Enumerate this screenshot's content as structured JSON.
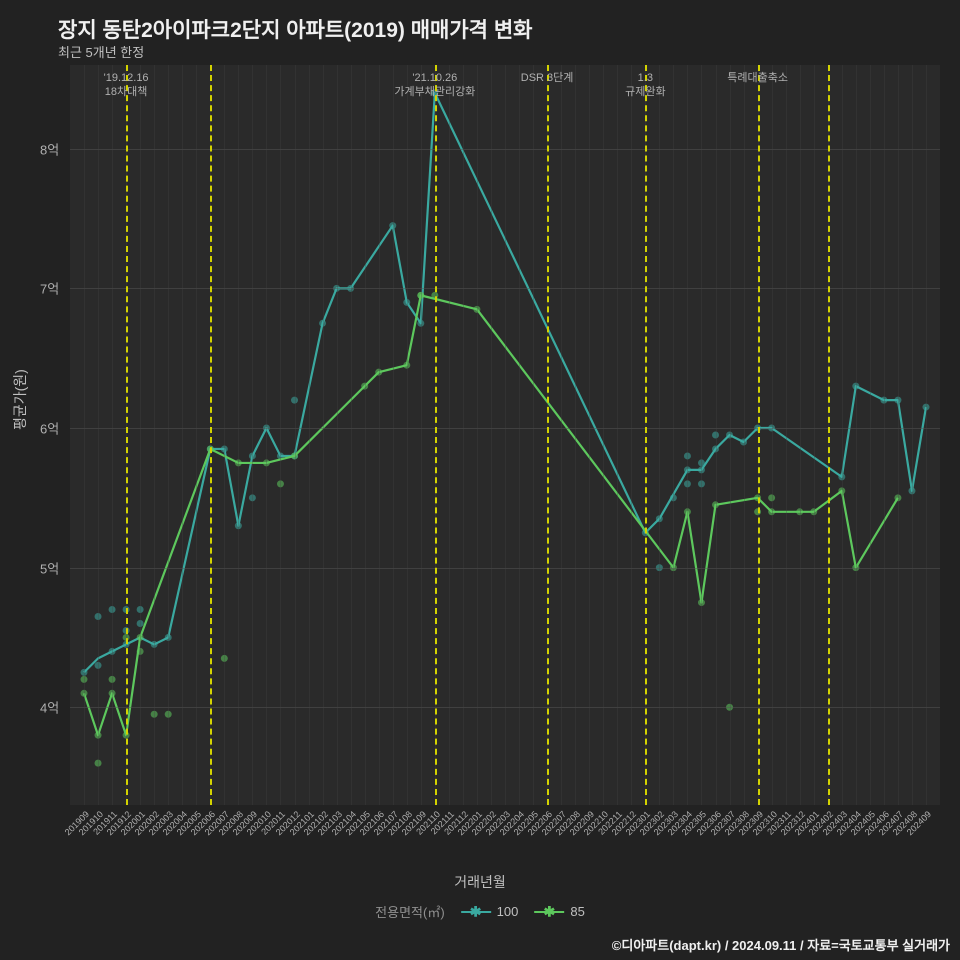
{
  "title": "장지 동탄2아이파크2단지 아파트(2019) 매매가격 변화",
  "subtitle": "최근 5개년 한정",
  "ylabel": "평균가(원)",
  "xlabel": "거래년월",
  "legend_title": "전용면적(㎡)",
  "footer": "©디아파트(dapt.kr) / 2024.09.11 / 자료=국토교통부 실거래가",
  "plot": {
    "bg": "#2a2a2a",
    "ylim": [
      3.3,
      8.6
    ],
    "yticks": [
      4,
      5,
      6,
      7,
      8
    ],
    "ytick_labels": [
      "4억",
      "5억",
      "6억",
      "7억",
      "8억"
    ],
    "x_categories": [
      "201909",
      "201910",
      "201911",
      "201912",
      "202001",
      "202002",
      "202003",
      "202004",
      "202005",
      "202006",
      "202007",
      "202008",
      "202009",
      "202010",
      "202011",
      "202012",
      "202101",
      "202102",
      "202103",
      "202104",
      "202105",
      "202106",
      "202107",
      "202108",
      "202109",
      "202110",
      "202111",
      "202112",
      "202201",
      "202202",
      "202203",
      "202204",
      "202205",
      "202206",
      "202207",
      "202208",
      "202209",
      "202210",
      "202211",
      "202212",
      "202301",
      "202302",
      "202303",
      "202304",
      "202305",
      "202306",
      "202307",
      "202308",
      "202309",
      "202310",
      "202311",
      "202312",
      "202401",
      "202402",
      "202403",
      "202404",
      "202405",
      "202406",
      "202407",
      "202408",
      "202409"
    ],
    "grid_color_h": "#555555",
    "grid_color_v": "#444444",
    "vline_color": "#d4d400",
    "vlines": [
      {
        "x": 3,
        "label": "'19.12.16\n18차대책"
      },
      {
        "x": 9,
        "label": ""
      },
      {
        "x": 25,
        "label": "'21.10.26\n가계부채관리강화"
      },
      {
        "x": 33,
        "label": "DSR 3단계"
      },
      {
        "x": 40,
        "label": "1.3\n규제완화"
      },
      {
        "x": 48,
        "label": "특례대출축소"
      },
      {
        "x": 53,
        "label": ""
      }
    ],
    "series": [
      {
        "name": "100",
        "color": "#3aa9a0",
        "marker": "x",
        "line": [
          [
            0,
            4.25
          ],
          [
            1,
            4.35
          ],
          [
            2,
            4.4
          ],
          [
            3,
            4.45
          ],
          [
            4,
            4.5
          ],
          [
            5,
            4.45
          ],
          [
            6,
            4.5
          ],
          [
            9,
            5.85
          ],
          [
            10,
            5.85
          ],
          [
            11,
            5.3
          ],
          [
            12,
            5.8
          ],
          [
            13,
            6.0
          ],
          [
            14,
            5.8
          ],
          [
            15,
            5.8
          ],
          [
            17,
            6.75
          ],
          [
            18,
            7.0
          ],
          [
            19,
            7.0
          ],
          [
            22,
            7.45
          ],
          [
            23,
            6.9
          ],
          [
            24,
            6.75
          ],
          [
            25,
            8.4
          ],
          [
            40,
            5.25
          ],
          [
            41,
            5.35
          ],
          [
            43,
            5.7
          ],
          [
            44,
            5.7
          ],
          [
            45,
            5.85
          ],
          [
            46,
            5.95
          ],
          [
            47,
            5.9
          ],
          [
            48,
            6.0
          ],
          [
            49,
            6.0
          ],
          [
            54,
            5.65
          ],
          [
            55,
            6.3
          ],
          [
            57,
            6.2
          ],
          [
            58,
            6.2
          ],
          [
            59,
            5.55
          ],
          [
            60,
            6.15
          ]
        ],
        "scatter": [
          [
            0,
            4.25
          ],
          [
            1,
            4.3
          ],
          [
            1,
            4.65
          ],
          [
            2,
            4.7
          ],
          [
            2,
            4.4
          ],
          [
            3,
            4.7
          ],
          [
            3,
            4.55
          ],
          [
            3,
            4.45
          ],
          [
            4,
            4.7
          ],
          [
            4,
            4.6
          ],
          [
            5,
            4.45
          ],
          [
            6,
            4.5
          ],
          [
            9,
            5.85
          ],
          [
            10,
            5.85
          ],
          [
            11,
            5.3
          ],
          [
            12,
            5.8
          ],
          [
            12,
            5.5
          ],
          [
            13,
            6.0
          ],
          [
            14,
            5.8
          ],
          [
            15,
            5.8
          ],
          [
            15,
            6.2
          ],
          [
            17,
            6.75
          ],
          [
            18,
            7.0
          ],
          [
            19,
            7.0
          ],
          [
            22,
            7.45
          ],
          [
            23,
            6.9
          ],
          [
            24,
            6.75
          ],
          [
            25,
            8.4
          ],
          [
            40,
            5.25
          ],
          [
            41,
            5.35
          ],
          [
            41,
            5.0
          ],
          [
            42,
            5.5
          ],
          [
            43,
            5.8
          ],
          [
            43,
            5.7
          ],
          [
            43,
            5.6
          ],
          [
            44,
            5.7
          ],
          [
            44,
            5.6
          ],
          [
            44,
            5.75
          ],
          [
            45,
            5.85
          ],
          [
            45,
            5.95
          ],
          [
            46,
            5.95
          ],
          [
            47,
            5.9
          ],
          [
            48,
            6.0
          ],
          [
            49,
            6.0
          ],
          [
            54,
            5.65
          ],
          [
            55,
            6.3
          ],
          [
            57,
            6.2
          ],
          [
            58,
            6.2
          ],
          [
            59,
            5.55
          ],
          [
            60,
            6.15
          ]
        ]
      },
      {
        "name": "85",
        "color": "#5dc85d",
        "marker": "x",
        "line": [
          [
            0,
            4.1
          ],
          [
            1,
            3.8
          ],
          [
            2,
            4.1
          ],
          [
            3,
            3.8
          ],
          [
            4,
            4.5
          ],
          [
            9,
            5.85
          ],
          [
            11,
            5.75
          ],
          [
            13,
            5.75
          ],
          [
            15,
            5.8
          ],
          [
            20,
            6.3
          ],
          [
            21,
            6.4
          ],
          [
            23,
            6.45
          ],
          [
            24,
            6.95
          ],
          [
            28,
            6.85
          ],
          [
            42,
            5.0
          ],
          [
            43,
            5.4
          ],
          [
            44,
            4.75
          ],
          [
            45,
            5.45
          ],
          [
            48,
            5.5
          ],
          [
            49,
            5.4
          ],
          [
            51,
            5.4
          ],
          [
            52,
            5.4
          ],
          [
            54,
            5.55
          ],
          [
            55,
            5.0
          ],
          [
            58,
            5.5
          ]
        ],
        "scatter": [
          [
            0,
            4.1
          ],
          [
            0,
            4.2
          ],
          [
            1,
            3.6
          ],
          [
            1,
            3.8
          ],
          [
            2,
            4.1
          ],
          [
            2,
            4.2
          ],
          [
            3,
            3.8
          ],
          [
            3,
            4.5
          ],
          [
            4,
            4.5
          ],
          [
            4,
            4.4
          ],
          [
            5,
            3.95
          ],
          [
            6,
            3.95
          ],
          [
            9,
            5.85
          ],
          [
            10,
            4.35
          ],
          [
            11,
            5.75
          ],
          [
            13,
            5.75
          ],
          [
            14,
            5.6
          ],
          [
            15,
            5.8
          ],
          [
            20,
            6.3
          ],
          [
            21,
            6.4
          ],
          [
            23,
            6.45
          ],
          [
            24,
            6.95
          ],
          [
            24,
            6.95
          ],
          [
            25,
            6.95
          ],
          [
            28,
            6.85
          ],
          [
            42,
            5.0
          ],
          [
            43,
            5.4
          ],
          [
            44,
            4.75
          ],
          [
            45,
            5.45
          ],
          [
            46,
            4.0
          ],
          [
            48,
            5.5
          ],
          [
            48,
            5.4
          ],
          [
            49,
            5.4
          ],
          [
            49,
            5.5
          ],
          [
            51,
            5.4
          ],
          [
            52,
            5.4
          ],
          [
            54,
            5.55
          ],
          [
            55,
            5.0
          ],
          [
            58,
            5.5
          ]
        ]
      }
    ]
  }
}
